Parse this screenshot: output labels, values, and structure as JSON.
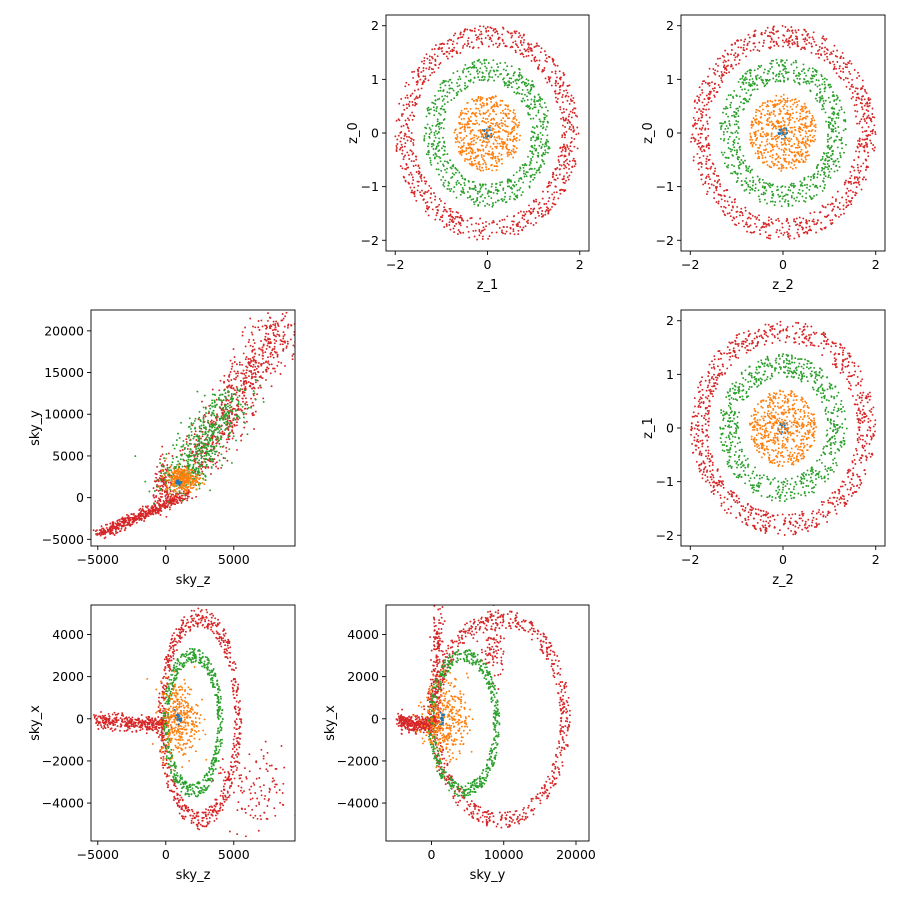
{
  "colors": {
    "blue": "#1f77b4",
    "orange": "#ff7f0e",
    "green": "#2ca02c",
    "red": "#d62728"
  },
  "chart_data": [
    {
      "type": "scatter",
      "xlabel": "z_1",
      "ylabel": "z_0",
      "xlim": [
        -2.2,
        2.2
      ],
      "ylim": [
        -2.2,
        2.2
      ],
      "xticks": [
        -2,
        0,
        2
      ],
      "xtick_labels": [
        "−2",
        "0",
        "2"
      ],
      "yticks": [
        -2,
        -1,
        0,
        1,
        2
      ],
      "ytick_labels": [
        "−2",
        "−1",
        "0",
        "1",
        "2"
      ],
      "grid": false,
      "series": [
        {
          "color": "blue",
          "shape": "ring",
          "inner_radius": 0.0,
          "outer_radius": 0.12,
          "n_points": 30
        },
        {
          "color": "orange",
          "shape": "ring",
          "inner_radius": 0.0,
          "outer_radius": 0.72,
          "n_points": 500
        },
        {
          "color": "green",
          "shape": "ring",
          "inner_radius": 0.95,
          "outer_radius": 1.38,
          "n_points": 700
        },
        {
          "color": "red",
          "shape": "ring",
          "inner_radius": 1.6,
          "outer_radius": 2.0,
          "n_points": 900
        }
      ]
    },
    {
      "type": "scatter",
      "xlabel": "z_2",
      "ylabel": "z_0",
      "xlim": [
        -2.2,
        2.2
      ],
      "ylim": [
        -2.2,
        2.2
      ],
      "xticks": [
        -2,
        0,
        2
      ],
      "xtick_labels": [
        "−2",
        "0",
        "2"
      ],
      "yticks": [
        -2,
        -1,
        0,
        1,
        2
      ],
      "ytick_labels": [
        "−2",
        "−1",
        "0",
        "1",
        "2"
      ],
      "grid": false,
      "series": [
        {
          "color": "blue",
          "shape": "ring",
          "inner_radius": 0.0,
          "outer_radius": 0.12,
          "n_points": 30
        },
        {
          "color": "orange",
          "shape": "ring",
          "inner_radius": 0.0,
          "outer_radius": 0.72,
          "n_points": 500
        },
        {
          "color": "green",
          "shape": "ring",
          "inner_radius": 0.95,
          "outer_radius": 1.38,
          "n_points": 700
        },
        {
          "color": "red",
          "shape": "ring",
          "inner_radius": 1.6,
          "outer_radius": 2.0,
          "n_points": 900
        }
      ]
    },
    {
      "type": "scatter",
      "xlabel": "sky_z",
      "ylabel": "sky_y",
      "xlim": [
        -5500,
        9500
      ],
      "ylim": [
        -5800,
        22500
      ],
      "xticks": [
        -5000,
        0,
        5000
      ],
      "xtick_labels": [
        "−5000",
        "0",
        "5000"
      ],
      "yticks": [
        -5000,
        0,
        5000,
        10000,
        15000,
        20000
      ],
      "ytick_labels": [
        "−5000",
        "0",
        "5000",
        "10000",
        "15000",
        "20000"
      ],
      "grid": false,
      "series": [
        {
          "color": "red",
          "shape": "polyline_band",
          "width": 300,
          "n_points": 500,
          "path": [
            [
              -4800,
              -4400
            ],
            [
              -3000,
              -3000
            ],
            [
              -1500,
              -1800
            ],
            [
              0,
              -800
            ],
            [
              1500,
              500
            ]
          ]
        },
        {
          "color": "red",
          "shape": "blob",
          "center": [
            -100,
            1500
          ],
          "spread": [
            400,
            1400
          ],
          "n_points": 120
        },
        {
          "color": "red",
          "shape": "polyline_band",
          "width": 900,
          "n_points": 700,
          "path": [
            [
              2000,
              3500
            ],
            [
              3500,
              7500
            ],
            [
              4800,
              10500
            ],
            [
              6200,
              15000
            ],
            [
              7500,
              18000
            ],
            [
              8500,
              21000
            ]
          ]
        },
        {
          "color": "green",
          "shape": "polyline_band",
          "width": 900,
          "n_points": 550,
          "path": [
            [
              500,
              1000
            ],
            [
              1800,
              3500
            ],
            [
              3000,
              7000
            ],
            [
              4200,
              10500
            ],
            [
              5000,
              12500
            ]
          ]
        },
        {
          "color": "orange",
          "shape": "blob",
          "center": [
            1200,
            2200
          ],
          "spread": [
            600,
            700
          ],
          "n_points": 300
        },
        {
          "color": "blue",
          "shape": "blob",
          "center": [
            1000,
            1800
          ],
          "spread": [
            120,
            120
          ],
          "n_points": 20
        }
      ]
    },
    {
      "type": "scatter",
      "xlabel": "z_2",
      "ylabel": "z_1",
      "xlim": [
        -2.2,
        2.2
      ],
      "ylim": [
        -2.2,
        2.2
      ],
      "xticks": [
        -2,
        0,
        2
      ],
      "xtick_labels": [
        "−2",
        "0",
        "2"
      ],
      "yticks": [
        -2,
        -1,
        0,
        1,
        2
      ],
      "ytick_labels": [
        "−2",
        "−1",
        "0",
        "1",
        "2"
      ],
      "grid": false,
      "series": [
        {
          "color": "blue",
          "shape": "ring",
          "inner_radius": 0.0,
          "outer_radius": 0.12,
          "n_points": 30
        },
        {
          "color": "orange",
          "shape": "ring",
          "inner_radius": 0.0,
          "outer_radius": 0.72,
          "n_points": 500
        },
        {
          "color": "green",
          "shape": "ring",
          "inner_radius": 0.95,
          "outer_radius": 1.38,
          "n_points": 700
        },
        {
          "color": "red",
          "shape": "ring",
          "inner_radius": 1.6,
          "outer_radius": 2.0,
          "n_points": 900
        }
      ]
    },
    {
      "type": "scatter",
      "xlabel": "sky_z",
      "ylabel": "sky_x",
      "xlim": [
        -5500,
        9500
      ],
      "ylim": [
        -5800,
        5400
      ],
      "xticks": [
        -5000,
        0,
        5000
      ],
      "xtick_labels": [
        "−5000",
        "0",
        "5000"
      ],
      "yticks": [
        -4000,
        -2000,
        0,
        2000,
        4000
      ],
      "ytick_labels": [
        "−4000",
        "−2000",
        "0",
        "2000",
        "4000"
      ],
      "grid": false,
      "series": [
        {
          "color": "red",
          "shape": "polyline_band",
          "width": 180,
          "n_points": 350,
          "path": [
            [
              -5000,
              -100
            ],
            [
              -2500,
              -200
            ],
            [
              -500,
              -300
            ],
            [
              200,
              -100
            ]
          ]
        },
        {
          "color": "red",
          "shape": "ellipse_ring",
          "center": [
            2500,
            0
          ],
          "radii": [
            2800,
            4800
          ],
          "thickness": 900,
          "n_points": 650
        },
        {
          "color": "red",
          "shape": "blob",
          "center": [
            6500,
            -3500
          ],
          "spread": [
            1400,
            1000
          ],
          "n_points": 120
        },
        {
          "color": "green",
          "shape": "ellipse_ring",
          "center": [
            2000,
            -200
          ],
          "radii": [
            2000,
            3200
          ],
          "thickness": 700,
          "n_points": 550
        },
        {
          "color": "orange",
          "shape": "blob",
          "center": [
            1000,
            0
          ],
          "spread": [
            700,
            900
          ],
          "n_points": 350
        },
        {
          "color": "blue",
          "shape": "blob",
          "center": [
            900,
            0
          ],
          "spread": [
            120,
            120
          ],
          "n_points": 20
        }
      ]
    },
    {
      "type": "scatter",
      "xlabel": "sky_y",
      "ylabel": "sky_x",
      "xlim": [
        -6300,
        21800
      ],
      "ylim": [
        -5800,
        5400
      ],
      "xticks": [
        0,
        10000,
        20000
      ],
      "xtick_labels": [
        "0",
        "10000",
        "20000"
      ],
      "yticks": [
        -4000,
        -2000,
        0,
        2000,
        4000
      ],
      "ytick_labels": [
        "−4000",
        "−2000",
        "0",
        "2000",
        "4000"
      ],
      "grid": false,
      "series": [
        {
          "color": "red",
          "shape": "polyline_band",
          "width": 180,
          "n_points": 350,
          "path": [
            [
              -4500,
              -150
            ],
            [
              -2000,
              -250
            ],
            [
              0,
              -300
            ],
            [
              500,
              0
            ]
          ]
        },
        {
          "color": "red",
          "shape": "polyline_band",
          "width": 450,
          "n_points": 200,
          "path": [
            [
              0,
              0
            ],
            [
              500,
              2000
            ],
            [
              1200,
              4800
            ]
          ]
        },
        {
          "color": "red",
          "shape": "ellipse_ring",
          "center": [
            9500,
            0
          ],
          "radii": [
            9000,
            4800
          ],
          "thickness": 1400,
          "n_points": 700
        },
        {
          "color": "red",
          "shape": "blob",
          "center": [
            8500,
            3500
          ],
          "spread": [
            900,
            900
          ],
          "n_points": 100
        },
        {
          "color": "green",
          "shape": "ellipse_ring",
          "center": [
            4500,
            -200
          ],
          "radii": [
            4500,
            3200
          ],
          "thickness": 900,
          "n_points": 550
        },
        {
          "color": "orange",
          "shape": "blob",
          "center": [
            2000,
            0
          ],
          "spread": [
            1500,
            900
          ],
          "n_points": 350
        },
        {
          "color": "blue",
          "shape": "blob",
          "center": [
            1500,
            0
          ],
          "spread": [
            150,
            150
          ],
          "n_points": 20
        }
      ]
    }
  ]
}
